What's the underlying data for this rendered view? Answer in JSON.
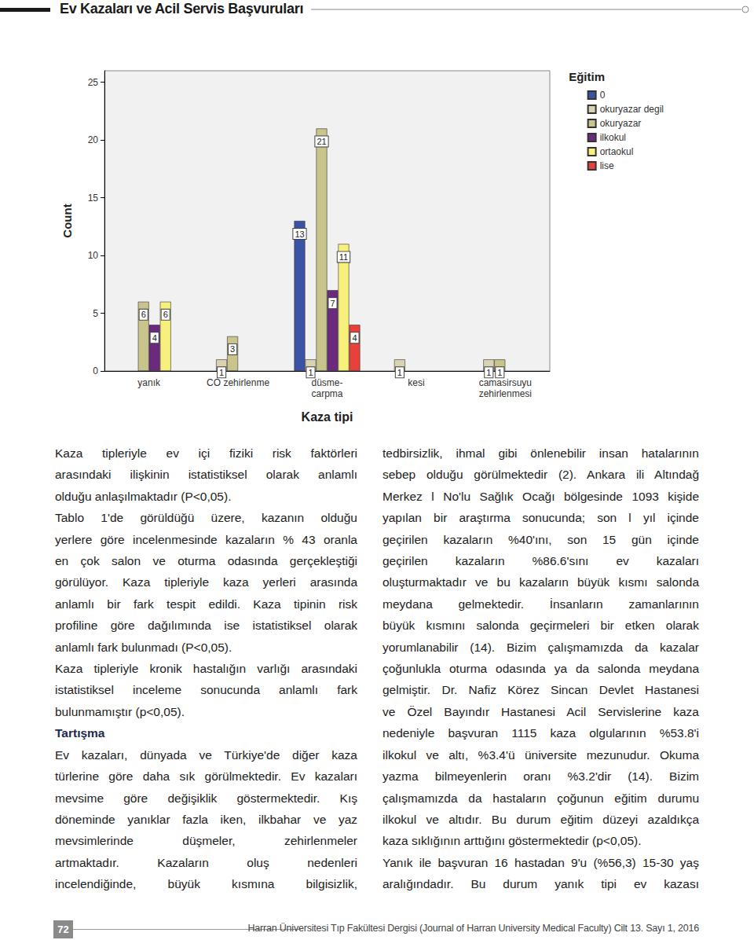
{
  "header": {
    "title": "Ev Kazaları ve Acil Servis Başvuruları"
  },
  "chart_data": {
    "type": "bar",
    "categories": [
      "yanık",
      "CO zehirlenme",
      "düsme-\ncarpma",
      "kesi",
      "camasirsuyu\nzehirlenmesi"
    ],
    "series": [
      {
        "name": "0",
        "color": "#3a53a4",
        "values": [
          null,
          null,
          13,
          null,
          null
        ]
      },
      {
        "name": "okuryazar degil",
        "color": "#d9d3b2",
        "values": [
          null,
          1,
          1,
          1,
          1
        ]
      },
      {
        "name": "okuryazar",
        "color": "#c9c48c",
        "values": [
          6,
          3,
          21,
          null,
          1
        ]
      },
      {
        "name": "ilkokul",
        "color": "#6b2a7e",
        "values": [
          4,
          null,
          7,
          null,
          null
        ]
      },
      {
        "name": "ortaokul",
        "color": "#f7f07a",
        "values": [
          6,
          null,
          11,
          null,
          null
        ]
      },
      {
        "name": "lise",
        "color": "#e8403a",
        "values": [
          null,
          null,
          4,
          null,
          null
        ]
      }
    ],
    "x_label": "Kaza tipi",
    "y_label": "Count",
    "legend_title": "Eğitim",
    "legend": "right",
    "ylim": [
      0,
      26
    ],
    "yticks": [
      0,
      5,
      10,
      15,
      20,
      25
    ],
    "grid": false,
    "data_labels": true
  },
  "text": {
    "left": [
      {
        "lines": [
          "Kaza tipleriyle ev içi fiziki risk faktörleri",
          "arasındaki ilişkinin istatistiksel olarak anlamlı",
          "olduğu anlaşılmaktadır (P<0,05)."
        ]
      },
      {
        "lines": [
          "Tablo 1'de görüldüğü üzere,  kazanın olduğu",
          "yerlere göre incelenmesinde kazaların % 43 oranla",
          "en çok salon ve oturma odasında gerçekleştiği",
          "görülüyor. Kaza tipleriyle kaza yerleri arasında",
          "anlamlı bir fark tespit edildi.  Kaza tipinin risk",
          "profiline göre dağılımında ise istatistiksel olarak",
          "anlamlı fark bulunmadı (P<0,05)."
        ]
      },
      {
        "lines": [
          "Kaza tipleriyle kronik hastalığın varlığı arasındaki",
          "istatistiksel inceleme sonucunda anlamlı fark",
          "bulunmamıştır (p<0,05)."
        ]
      },
      {
        "heading": true,
        "lines": [
          "Tartışma"
        ]
      },
      {
        "continued": true,
        "lines": [
          "Ev kazaları, dünyada ve Türkiye'de diğer kaza",
          "türlerine göre daha sık görülmektedir. Ev kazaları",
          "mevsime göre değişiklik göstermektedir. Kış",
          "döneminde yanıklar fazla iken, ilkbahar ve yaz",
          "mevsimlerinde düşmeler, zehirlenmeler",
          "artmaktadır. Kazaların oluş nedenleri",
          "incelendiğinde, büyük kısmına bilgisizlik,"
        ]
      }
    ],
    "right": [
      {
        "lines": [
          "tedbirsizlik, ihmal gibi önlenebilir insan hatalarının",
          "sebep olduğu görülmektedir (2). Ankara ili Altındağ",
          "Merkez l No'lu Sağlık Ocağı bölgesinde 1093 kişide",
          "yapılan bir araştırma sonucunda; son l yıl içinde",
          "geçirilen kazaların %40'ını, son 15 gün içinde",
          "geçirilen kazaların %86.6'sını ev kazaları",
          "oluşturmaktadır ve bu kazaların büyük kısmı salonda",
          "meydana gelmektedir. İnsanların zamanlarının",
          "büyük kısmını salonda geçirmeleri bir etken olarak",
          "yorumlanabilir (14). Bizim çalışmamızda da kazalar",
          "çoğunlukla oturma odasında ya da salonda meydana",
          "gelmiştir. Dr. Nafiz Körez Sincan Devlet Hastanesi",
          "ve Özel Bayındır Hastanesi Acil Servislerine kaza",
          "nedeniyle başvuran 1115 kaza olgularının %53.8'i",
          "ilkokul ve altı, %3.4'ü üniversite mezunudur. Okuma",
          "yazma bilmeyenlerin oranı %3.2'dir (14). Bizim",
          "çalışmamızda da hastaların çoğunun eğitim durumu",
          "ilkokul ve altıdır. Bu durum eğitim düzeyi azaldıkça",
          "kaza sıklığının arttığını göstermektedir (p<0,05)."
        ]
      },
      {
        "continued": true,
        "lines": [
          "Yanık ile başvuran 16 hastadan 9'u (%56,3) 15-30 yaş",
          "aralığındadır. Bu durum yanık tipi ev kazası"
        ]
      }
    ]
  },
  "footer": {
    "page": "72",
    "journal": "Harran Üniversitesi Tıp Fakültesi Dergisi (Journal of Harran University Medical Faculty) Cilt 13. Sayı 1, 2016"
  }
}
